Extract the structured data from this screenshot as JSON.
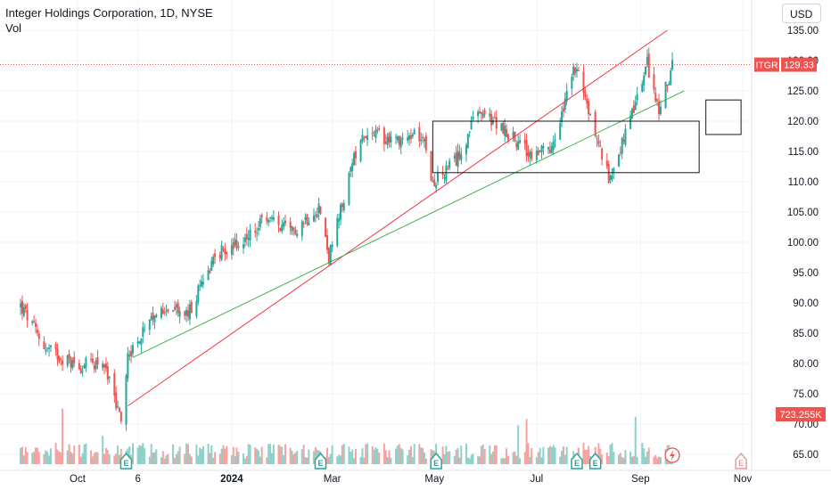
{
  "header": {
    "title": "Integer Holdings Corporation, 1D, NYSE",
    "volume_label": "Vol",
    "currency_button": "USD"
  },
  "badges": {
    "ticker": "ITGR",
    "price": "129.33",
    "volume": "723.255K"
  },
  "colors": {
    "up": "#26a69a",
    "down": "#ef5350",
    "vol_up": "#8fd0c9",
    "vol_down": "#f5a3a1",
    "red_line": "#f23645",
    "green_line": "#4caf50",
    "axis_text": "#131722"
  },
  "chart_data": {
    "type": "candlestick",
    "y_axis": {
      "ticks": [
        65,
        70,
        75,
        80,
        85,
        90,
        95,
        100,
        105,
        110,
        115,
        120,
        125,
        130,
        135
      ],
      "labels": [
        "65.00",
        "70.00",
        "75.00",
        "80.00",
        "85.00",
        "90.00",
        "95.00",
        "100.00",
        "105.00",
        "110.00",
        "115.00",
        "120.00",
        "125.00",
        "130.00",
        "135.00"
      ]
    },
    "x_axis": {
      "labels": [
        "Oct",
        "6",
        "2024",
        "Mar",
        "May",
        "Jul",
        "Sep",
        "Nov"
      ],
      "dates": [
        "2023-10-01",
        "2023-11-06",
        "2024-01-01",
        "2024-03-01",
        "2024-05-01",
        "2024-07-01",
        "2024-09-01",
        "2024-11-01"
      ]
    },
    "last_price": 129.33,
    "series_anchors": [
      {
        "date": "2023-08-28",
        "close": 89.5
      },
      {
        "date": "2023-09-12",
        "close": 82.5
      },
      {
        "date": "2023-10-02",
        "close": 79.5
      },
      {
        "date": "2023-10-16",
        "close": 80.5
      },
      {
        "date": "2023-10-27",
        "close": 70.5
      },
      {
        "date": "2023-10-31",
        "close": 81.5
      },
      {
        "date": "2023-11-08",
        "close": 84.5
      },
      {
        "date": "2023-11-22",
        "close": 89.5
      },
      {
        "date": "2023-12-06",
        "close": 88.0
      },
      {
        "date": "2023-12-22",
        "close": 98.0
      },
      {
        "date": "2024-01-10",
        "close": 100.5
      },
      {
        "date": "2024-01-22",
        "close": 104.0
      },
      {
        "date": "2024-02-05",
        "close": 101.5
      },
      {
        "date": "2024-02-22",
        "close": 106.0
      },
      {
        "date": "2024-02-28",
        "close": 97.5
      },
      {
        "date": "2024-03-18",
        "close": 118.0
      },
      {
        "date": "2024-04-08",
        "close": 117.0
      },
      {
        "date": "2024-04-25",
        "close": 118.0
      },
      {
        "date": "2024-04-30",
        "close": 109.5
      },
      {
        "date": "2024-05-14",
        "close": 113.5
      },
      {
        "date": "2024-05-27",
        "close": 121.5
      },
      {
        "date": "2024-06-10",
        "close": 119.0
      },
      {
        "date": "2024-06-27",
        "close": 114.5
      },
      {
        "date": "2024-07-10",
        "close": 115.0
      },
      {
        "date": "2024-07-24",
        "close": 129.0
      },
      {
        "date": "2024-08-05",
        "close": 118.0
      },
      {
        "date": "2024-08-13",
        "close": 110.5
      },
      {
        "date": "2024-08-26",
        "close": 120.0
      },
      {
        "date": "2024-09-05",
        "close": 129.5
      },
      {
        "date": "2024-09-12",
        "close": 121.5
      },
      {
        "date": "2024-09-20",
        "close": 129.33
      }
    ],
    "trend_lines": [
      {
        "name": "red",
        "from": {
          "date": "2023-10-31",
          "price": 73.0
        },
        "to": {
          "date": "2024-09-17",
          "price": 135.0
        }
      },
      {
        "name": "green",
        "from": {
          "date": "2023-11-03",
          "price": 81.0
        },
        "to": {
          "date": "2024-09-27",
          "price": 125.0
        }
      }
    ],
    "rectangles": [
      {
        "from": {
          "date": "2024-04-30",
          "price": 120.0
        },
        "to": {
          "date": "2024-10-06",
          "price": 111.5
        }
      },
      {
        "from": {
          "date": "2024-10-10",
          "price": 123.5
        },
        "to": {
          "date": "2024-10-31",
          "price": 117.8
        }
      }
    ],
    "event_markers": [
      "E",
      "E",
      "E",
      "E",
      "E",
      "E"
    ]
  }
}
